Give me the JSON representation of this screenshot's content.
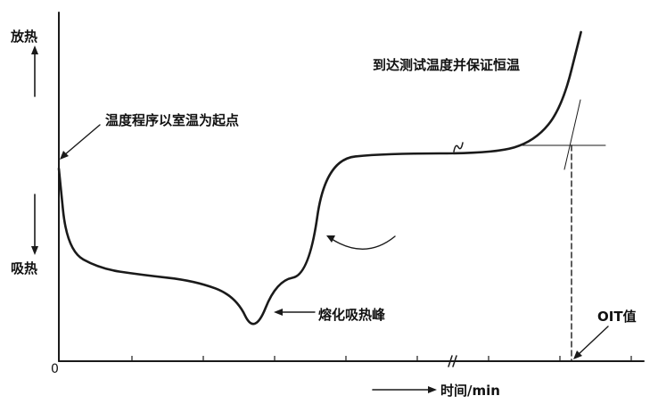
{
  "chart_data": {
    "type": "line",
    "title": "",
    "xlabel": "时间/min",
    "ylabel_top": "放热",
    "ylabel_bottom": "吸热",
    "x_origin_label": "0",
    "x_axis_break": true,
    "grid": false,
    "legend": "none",
    "annotations": {
      "start": "温度程序以室温为起点",
      "melting_peak": "熔化吸热峰",
      "isothermal": "到达测试温度并保证恒温",
      "oit": "OIT值"
    },
    "series": [
      {
        "description_points": [
          {
            "x": 0.0,
            "y": 0.55
          },
          {
            "x": 0.3,
            "y": 0.28
          },
          {
            "x": 1.5,
            "y": 0.22
          },
          {
            "x": 3.0,
            "y": 0.2
          },
          {
            "x": 5.0,
            "y": 0.18
          },
          {
            "x": 6.5,
            "y": 0.13
          },
          {
            "x": 7.2,
            "y": 0.0
          },
          {
            "x": 8.0,
            "y": 0.18
          },
          {
            "x": 9.2,
            "y": 0.2
          },
          {
            "x": 9.8,
            "y": 0.58
          },
          {
            "x": 12.0,
            "y": 0.6
          },
          {
            "x": 16.0,
            "y": 0.6
          },
          {
            "x": 17.5,
            "y": 0.64
          },
          {
            "x": 18.5,
            "y": 0.75
          },
          {
            "x": 19.2,
            "y": 1.0
          }
        ]
      }
    ]
  }
}
